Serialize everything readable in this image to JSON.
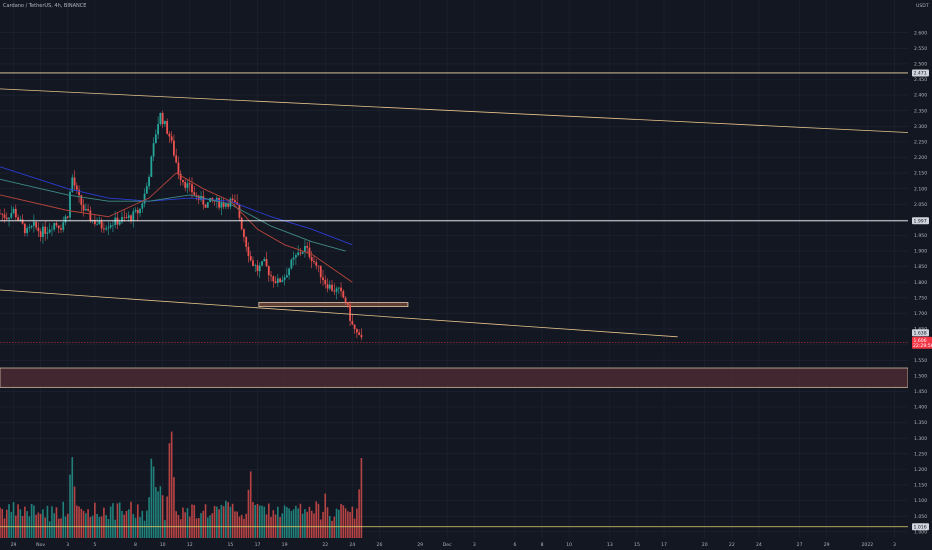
{
  "header": {
    "title": "Cardano / TetherUS, 4h, BINANCE"
  },
  "price_axis": {
    "unit": "USDT",
    "ticks": [
      "2.600",
      "2.550",
      "2.500",
      "2.450",
      "2.400",
      "2.350",
      "2.300",
      "2.250",
      "2.200",
      "2.150",
      "2.100",
      "2.050",
      "2.000",
      "1.950",
      "1.900",
      "1.850",
      "1.800",
      "1.750",
      "1.700",
      "1.650",
      "1.600",
      "1.550",
      "1.500",
      "1.450",
      "1.400",
      "1.350",
      "1.300",
      "1.250",
      "1.200",
      "1.150",
      "1.100",
      "1.050",
      "1.000"
    ],
    "current_price": {
      "label": "1.606",
      "countdown": "22:29:56",
      "value": 1.606,
      "color": "#f23645"
    },
    "level_tags": [
      {
        "label": "2.471",
        "value": 2.471
      },
      {
        "label": "1.997",
        "value": 1.997
      },
      {
        "label": "1.638",
        "value": 1.638
      },
      {
        "label": "1.016",
        "value": 1.016
      }
    ]
  },
  "time_axis": {
    "ticks": [
      {
        "label": "29",
        "day": -2
      },
      {
        "label": "Nov",
        "day": 0
      },
      {
        "label": "3",
        "day": 2
      },
      {
        "label": "5",
        "day": 4
      },
      {
        "label": "8",
        "day": 7
      },
      {
        "label": "10",
        "day": 9
      },
      {
        "label": "12",
        "day": 11
      },
      {
        "label": "15",
        "day": 14
      },
      {
        "label": "17",
        "day": 16
      },
      {
        "label": "19",
        "day": 18
      },
      {
        "label": "22",
        "day": 21
      },
      {
        "label": "24",
        "day": 23
      },
      {
        "label": "26",
        "day": 25
      },
      {
        "label": "29",
        "day": 28
      },
      {
        "label": "Dec",
        "day": 30
      },
      {
        "label": "3",
        "day": 32
      },
      {
        "label": "6",
        "day": 35
      },
      {
        "label": "8",
        "day": 37
      },
      {
        "label": "10",
        "day": 39
      },
      {
        "label": "13",
        "day": 42
      },
      {
        "label": "15",
        "day": 44
      },
      {
        "label": "17",
        "day": 46
      },
      {
        "label": "20",
        "day": 49
      },
      {
        "label": "22",
        "day": 51
      },
      {
        "label": "24",
        "day": 53
      },
      {
        "label": "27",
        "day": 56
      },
      {
        "label": "29",
        "day": 58
      },
      {
        "label": "2022",
        "day": 61
      },
      {
        "label": "3",
        "day": 63
      }
    ]
  },
  "chart_data": {
    "type": "candlestick",
    "symbol": "ADA/USDT",
    "timeframe": "4h",
    "x_range_days": [
      -3,
      64
    ],
    "price_range": [
      0.98,
      2.66
    ],
    "ohlc_anchor_closes": [
      {
        "day": -3.0,
        "close": 2.02
      },
      {
        "day": -2.5,
        "close": 2.01
      },
      {
        "day": -2.0,
        "close": 2.03
      },
      {
        "day": -1.5,
        "close": 1.99
      },
      {
        "day": -1.0,
        "close": 1.96
      },
      {
        "day": -0.5,
        "close": 1.98
      },
      {
        "day": 0.0,
        "close": 1.96
      },
      {
        "day": 0.5,
        "close": 1.97
      },
      {
        "day": 1.0,
        "close": 1.99
      },
      {
        "day": 1.5,
        "close": 1.98
      },
      {
        "day": 2.0,
        "close": 2.02
      },
      {
        "day": 2.3,
        "close": 2.14
      },
      {
        "day": 2.7,
        "close": 2.08
      },
      {
        "day": 3.2,
        "close": 2.03
      },
      {
        "day": 3.8,
        "close": 2.0
      },
      {
        "day": 4.5,
        "close": 1.98
      },
      {
        "day": 5.2,
        "close": 1.99
      },
      {
        "day": 6.0,
        "close": 2.0
      },
      {
        "day": 6.7,
        "close": 2.01
      },
      {
        "day": 7.3,
        "close": 2.03
      },
      {
        "day": 7.8,
        "close": 2.1
      },
      {
        "day": 8.2,
        "close": 2.2
      },
      {
        "day": 8.5,
        "close": 2.28
      },
      {
        "day": 8.8,
        "close": 2.34
      },
      {
        "day": 9.1,
        "close": 2.31
      },
      {
        "day": 9.5,
        "close": 2.27
      },
      {
        "day": 9.8,
        "close": 2.22
      },
      {
        "day": 10.2,
        "close": 2.15
      },
      {
        "day": 10.6,
        "close": 2.12
      },
      {
        "day": 11.0,
        "close": 2.1
      },
      {
        "day": 11.6,
        "close": 2.07
      },
      {
        "day": 12.2,
        "close": 2.05
      },
      {
        "day": 12.8,
        "close": 2.06
      },
      {
        "day": 13.4,
        "close": 2.05
      },
      {
        "day": 14.0,
        "close": 2.06
      },
      {
        "day": 14.5,
        "close": 2.04
      },
      {
        "day": 15.0,
        "close": 1.95
      },
      {
        "day": 15.5,
        "close": 1.87
      },
      {
        "day": 16.0,
        "close": 1.84
      },
      {
        "day": 16.5,
        "close": 1.86
      },
      {
        "day": 17.0,
        "close": 1.82
      },
      {
        "day": 17.5,
        "close": 1.8
      },
      {
        "day": 18.0,
        "close": 1.82
      },
      {
        "day": 18.5,
        "close": 1.86
      },
      {
        "day": 19.0,
        "close": 1.89
      },
      {
        "day": 19.5,
        "close": 1.91
      },
      {
        "day": 20.0,
        "close": 1.88
      },
      {
        "day": 20.5,
        "close": 1.84
      },
      {
        "day": 21.0,
        "close": 1.8
      },
      {
        "day": 21.5,
        "close": 1.78
      },
      {
        "day": 22.0,
        "close": 1.77
      },
      {
        "day": 22.5,
        "close": 1.74
      },
      {
        "day": 23.0,
        "close": 1.66
      },
      {
        "day": 23.5,
        "close": 1.62
      },
      {
        "day": 23.8,
        "close": 1.606
      }
    ],
    "volume_anchor": [
      {
        "day": -3,
        "vol": 0.18
      },
      {
        "day": 2.3,
        "vol": 0.55
      },
      {
        "day": 8.3,
        "vol": 0.65
      },
      {
        "day": 8.8,
        "vol": 0.48
      },
      {
        "day": 9.6,
        "vol": 1.0
      },
      {
        "day": 15.5,
        "vol": 0.4
      },
      {
        "day": 21.0,
        "vol": 0.3
      },
      {
        "day": 23.7,
        "vol": 0.62
      }
    ],
    "horizontal_levels": [
      {
        "price": 2.471,
        "color": "#f0d9a8"
      },
      {
        "price": 1.997,
        "color": "#ffffff"
      },
      {
        "price": 1.016,
        "color": "#e6d76e"
      }
    ],
    "trend_lines": [
      {
        "from": {
          "day": -3,
          "price": 2.42
        },
        "to": {
          "day": 64,
          "price": 2.28
        },
        "color": "#e8c48b"
      },
      {
        "from": {
          "day": -3,
          "price": 1.775
        },
        "to": {
          "day": 47,
          "price": 1.625
        },
        "color": "#e8c48b"
      }
    ],
    "zones": [
      {
        "from_day": -3,
        "to_day": 64,
        "top": 1.525,
        "bottom": 1.463,
        "fill": "#4c2a32",
        "stroke": "#d4b9a0"
      },
      {
        "from_day": 16.1,
        "to_day": 27.1,
        "top": 1.735,
        "bottom": 1.722,
        "fill": "#6b4738",
        "stroke": "#e3c6a8"
      }
    ],
    "moving_averages": [
      {
        "name": "MA long",
        "color": "#2b3cd4",
        "points": [
          [
            -3,
            2.17
          ],
          [
            2,
            2.1
          ],
          [
            5,
            2.07
          ],
          [
            8,
            2.06
          ],
          [
            11,
            2.07
          ],
          [
            14,
            2.06
          ],
          [
            17,
            2.01
          ],
          [
            20,
            1.97
          ],
          [
            23,
            1.92
          ]
        ]
      },
      {
        "name": "MA mid",
        "color": "#3e8b86",
        "points": [
          [
            -3,
            2.13
          ],
          [
            2,
            2.08
          ],
          [
            5,
            2.06
          ],
          [
            8,
            2.06
          ],
          [
            11,
            2.08
          ],
          [
            14,
            2.05
          ],
          [
            17,
            1.98
          ],
          [
            20,
            1.93
          ],
          [
            22.5,
            1.9
          ]
        ]
      },
      {
        "name": "MA short",
        "color": "#b6453a",
        "points": [
          [
            -3,
            2.08
          ],
          [
            2,
            2.03
          ],
          [
            5,
            2.01
          ],
          [
            8,
            2.07
          ],
          [
            10,
            2.15
          ],
          [
            12,
            2.1
          ],
          [
            14,
            2.06
          ],
          [
            16,
            1.97
          ],
          [
            18,
            1.92
          ],
          [
            20,
            1.89
          ],
          [
            22,
            1.83
          ],
          [
            23,
            1.8
          ]
        ]
      }
    ]
  },
  "colors": {
    "up": "#26a69a",
    "down": "#ef5350",
    "grid": "#1f2433",
    "axis_text": "#b2b5be"
  }
}
